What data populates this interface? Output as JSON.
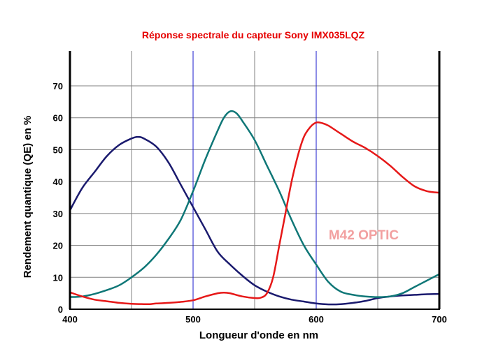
{
  "colors": {
    "title": "#e60000",
    "watermark": "#f2a0a0",
    "blue_series": "#1a1a6e",
    "green_series": "#0f7777",
    "red_series": "#e61818",
    "grid": "#808080",
    "marker_lines": "#1a1acc"
  },
  "chart_data": {
    "type": "line",
    "title": "Réponse spectrale du capteur Sony IMX035LQZ",
    "xlabel": "Longueur d'onde en nm",
    "ylabel": "Rendement quantique (QE) en %",
    "xlim": [
      400,
      700
    ],
    "ylim": [
      0,
      80
    ],
    "x_ticks": [
      400,
      500,
      600,
      700
    ],
    "y_ticks": [
      0,
      10,
      20,
      30,
      40,
      50,
      60,
      70
    ],
    "x_gridlines": [
      450,
      500,
      550,
      600,
      650
    ],
    "highlighted_x": [
      500,
      600
    ],
    "grid": true,
    "annotation": "M42 OPTIC",
    "series": [
      {
        "color_key": "blue_series",
        "x": [
          400,
          410,
          420,
          430,
          440,
          450,
          455,
          460,
          470,
          480,
          490,
          500,
          510,
          520,
          530,
          540,
          550,
          560,
          570,
          580,
          590,
          600,
          610,
          620,
          630,
          640,
          650,
          660,
          670,
          680,
          690,
          700
        ],
        "y": [
          31,
          38,
          43,
          48,
          51.5,
          53.5,
          54,
          53.5,
          51,
          46,
          39,
          32,
          25,
          18,
          14,
          10.5,
          7.5,
          5.5,
          4,
          3,
          2.4,
          1.8,
          1.5,
          1.6,
          2,
          2.6,
          3.5,
          4,
          4.3,
          4.5,
          4.7,
          4.8
        ]
      },
      {
        "color_key": "green_series",
        "x": [
          400,
          410,
          420,
          430,
          440,
          450,
          460,
          470,
          480,
          490,
          500,
          510,
          520,
          525,
          530,
          535,
          540,
          550,
          560,
          570,
          580,
          590,
          600,
          610,
          620,
          630,
          640,
          650,
          660,
          670,
          680,
          690,
          700
        ],
        "y": [
          3.8,
          4,
          4.8,
          6,
          7.5,
          10,
          13,
          17,
          22,
          28,
          37,
          47,
          56,
          60,
          62,
          61.5,
          59,
          53,
          45,
          37,
          28,
          20,
          14,
          8.5,
          5.5,
          4.5,
          4,
          3.8,
          4,
          5,
          7,
          9,
          11
        ]
      },
      {
        "color_key": "red_series",
        "x": [
          400,
          410,
          420,
          430,
          440,
          450,
          460,
          465,
          470,
          480,
          490,
          500,
          510,
          520,
          525,
          530,
          540,
          550,
          555,
          560,
          565,
          570,
          575,
          580,
          585,
          590,
          595,
          600,
          605,
          610,
          620,
          630,
          640,
          650,
          660,
          670,
          680,
          690,
          700
        ],
        "y": [
          5.3,
          4,
          3,
          2.5,
          2,
          1.7,
          1.6,
          1.6,
          1.8,
          2,
          2.3,
          2.8,
          4,
          5,
          5.2,
          5,
          4,
          3.5,
          3.6,
          5,
          10,
          20,
          30,
          40,
          48,
          54,
          57,
          58.5,
          58.3,
          57.5,
          55,
          52.5,
          50.5,
          48,
          45,
          41.5,
          38.5,
          37,
          36.5
        ]
      }
    ]
  }
}
